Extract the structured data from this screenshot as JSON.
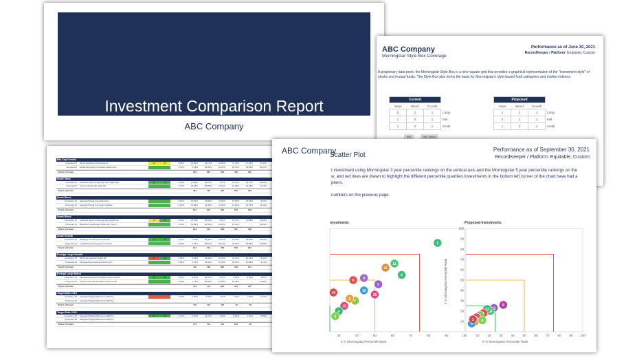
{
  "cover": {
    "title": "Investment Comparison Report",
    "company": "ABC Company"
  },
  "stylebox": {
    "company": "ABC Company",
    "subtitle": "Morningstar Style Box Coverage",
    "performance": "Performance as of June 30, 2021",
    "recordkeeper_label": "RecordKeeper / Platform",
    "recordkeeper_value": ": Empower, Custom",
    "body_line1": "A proprietary data point, the Morningstar Style Box is a nine-square grid that provides a graphical representation of the \"investment style\" of",
    "body_line2": "stocks and mutual funds. The Style Box also forms the basis for Morningstar's style-based fund categories and market indexes.",
    "current_label": "Current",
    "proposed_label": "Proposed",
    "cols": [
      "Value",
      "Blend",
      "Growth"
    ],
    "rows": [
      "Large",
      "Mid",
      "Small"
    ],
    "current_grid": [
      [
        "0",
        "2",
        "1"
      ],
      [
        "1",
        "0",
        "1"
      ],
      [
        "1",
        "2",
        "1"
      ]
    ],
    "proposed_grid": [
      [
        "1",
        "2",
        "1"
      ],
      [
        "2",
        "1",
        "1"
      ],
      [
        "1",
        "2",
        "1"
      ]
    ],
    "foot": [
      "Int'l",
      "Int'l. Bond"
    ]
  },
  "scatter": {
    "title": "ABC Company",
    "subtitle": "Scatter Plot",
    "performance": "Performance as of September 30, 2021",
    "recordkeeper": "RecordKeeper / Platform: Equitable, Custom",
    "body1": "t investment using Morningstar 3 year percentile rankings on the vertical axis and the Morningstar 5 year percentile rankings on the",
    "body2": "w, and red lines are drawn to highlight the different percentile quartiles Investments in the bottom left corner of the chart have had a",
    "body3": "peers.",
    "body4": "numbers on the previous page.",
    "left_chart_title": "nvestments",
    "right_chart_title": "Proposed Investments",
    "left_xlabel": "5 Yr Morningstar Percentile Rank",
    "right_xlabel": "5 Yr Morningstar Percentile Rank",
    "right_ylabel": "3 Yr Morningstar Percentile Rank",
    "left_ticks": [
      "30",
      "40",
      "50",
      "60",
      "70",
      "80",
      "90",
      "100"
    ],
    "right_xticks": [
      "10",
      "20",
      "30",
      "40",
      "50",
      "60",
      "70",
      "80",
      "90",
      "100"
    ],
    "right_yticks": [
      "100",
      "90",
      "80",
      "70",
      "60",
      "50",
      "40",
      "30",
      "20",
      "10"
    ]
  },
  "chart_data": [
    {
      "type": "scatter",
      "title": "",
      "xlabel": "5 Yr Morningstar Percentile Rank",
      "ylabel": "",
      "xlim": [
        25,
        100
      ],
      "ylim": [
        0,
        100
      ],
      "points": [
        {
          "x": 85,
          "y": 86,
          "label": "2",
          "color": "#3fb87f"
        },
        {
          "x": 65,
          "y": 55,
          "label": "6",
          "color": "#3fb87f"
        },
        {
          "x": 56,
          "y": 62,
          "label": "12",
          "color": "#d98c3f"
        },
        {
          "x": 61,
          "y": 66,
          "label": "11",
          "color": "#4fc07a"
        },
        {
          "x": 44,
          "y": 52,
          "label": "9",
          "color": "#a36bc9"
        },
        {
          "x": 38,
          "y": 50,
          "label": "8",
          "color": "#e05050"
        },
        {
          "x": 44,
          "y": 40,
          "label": "10",
          "color": "#3a9ad9"
        },
        {
          "x": 50,
          "y": 36,
          "label": "15",
          "color": "#d94c7a"
        },
        {
          "x": 52,
          "y": 46,
          "label": "5",
          "color": "#9b5bd4"
        },
        {
          "x": 39,
          "y": 30,
          "label": "7",
          "color": "#8cc63f"
        },
        {
          "x": 33,
          "y": 25,
          "label": "13",
          "color": "#d94c7a"
        },
        {
          "x": 36,
          "y": 32,
          "label": "1",
          "color": "#e6a23c"
        },
        {
          "x": 30,
          "y": 20,
          "label": "4",
          "color": "#3fb87f"
        },
        {
          "x": 28,
          "y": 15,
          "label": "3",
          "color": "#7fd34e"
        },
        {
          "x": 27,
          "y": 38,
          "label": "14",
          "color": "#c84e4e"
        }
      ]
    },
    {
      "type": "scatter",
      "title": "Proposed Investments",
      "xlabel": "5 Yr Morningstar Percentile Rank",
      "ylabel": "3 Yr Morningstar Percentile Rank",
      "xlim": [
        0,
        100
      ],
      "ylim": [
        0,
        100
      ],
      "points": [
        {
          "x": 32,
          "y": 26,
          "label": "9",
          "color": "#b83da8"
        },
        {
          "x": 24,
          "y": 23,
          "label": "11",
          "color": "#9b5bd4"
        },
        {
          "x": 21,
          "y": 20,
          "label": "10",
          "color": "#4fc07a"
        },
        {
          "x": 18,
          "y": 22,
          "label": "13",
          "color": "#3fb87f"
        },
        {
          "x": 15,
          "y": 18,
          "label": "5",
          "color": "#e05050"
        },
        {
          "x": 12,
          "y": 16,
          "label": "2",
          "color": "#8cc63f"
        },
        {
          "x": 9,
          "y": 14,
          "label": "8",
          "color": "#d94c7a"
        },
        {
          "x": 8,
          "y": 10,
          "label": "3",
          "color": "#e6a23c"
        },
        {
          "x": 5,
          "y": 8,
          "label": "6",
          "color": "#3a9ad9"
        },
        {
          "x": 14,
          "y": 11,
          "label": "4",
          "color": "#7fd34e"
        },
        {
          "x": 6,
          "y": 12,
          "label": "1",
          "color": "#c84e4e"
        }
      ]
    }
  ],
  "table": {
    "sections": [
      {
        "header": "Mid-Cap Growth",
        "rows": [
          {
            "lbl": "Incumbent 8",
            "name": "Janus Henderson Enterprise N",
            "r1": "42",
            "r2": "51",
            "c1": "#e8e83a",
            "c2": "#e8e83a",
            "v": [
              "0.94%",
              "10.81%",
              "33.14%",
              "16.03%",
              "17.92%",
              "17.54%",
              "17.20%",
              "07/12/12",
              "0.66%",
              "0.66%"
            ]
          },
          {
            "lbl": "Proposed 8",
            "name": "Harbor Disruptive Innovation Retirement",
            "r1": "",
            "r2": "",
            "c1": "#4caf50",
            "c2": "#4caf50",
            "v": [
              "-2.76%",
              "2.48%",
              "20.84%",
              "20.33%",
              "20.70%",
              "18.85%",
              "24.31%",
              "03/01/16",
              "0.78%",
              "0.50%"
            ]
          }
        ],
        "total": [
          "522",
          "384",
          "648",
          "466",
          "386"
        ]
      },
      {
        "header": "Small Value",
        "rows": [
          {
            "lbl": "Incumbent 9",
            "name": "Goldman Sachs Small Cap Val Insights R6",
            "r1": "40",
            "r2": "28",
            "c1": "#4caf50",
            "c2": "#4caf50",
            "v": [
              "-2.20%",
              "25.86%",
              "60.27%",
              "6.14%",
              "11.27%",
              "13.07%",
              "10.81%",
              "07/31/15",
              "0.92%",
              "0.80%"
            ]
          },
          {
            "lbl": "Proposed 9",
            "name": "Invesco Small Cap Value R6",
            "r1": "",
            "r2": "",
            "c1": "#4caf50",
            "c2": "#4caf50",
            "v": [
              "-1.79%",
              "30.25%",
              "83.83%",
              "13.51%",
              "13.89%",
              "15.23%",
              "11.19%",
              "02/07/17",
              "0.73%",
              "0.73%"
            ]
          }
        ],
        "total": [
          "425",
          "433",
          "403",
          "592",
          "299"
        ]
      },
      {
        "header": "Small Blend",
        "rows": [
          {
            "lbl": "Incumbent 10",
            "name": "Vanguard Small Cap Index Adm",
            "r1": "",
            "r2": "",
            "c1": "#4caf50",
            "c2": "#4caf50",
            "v": [
              "-2.62%",
              "13.97%",
              "44.06%",
              "11.90%",
              "13.87%",
              "15.33%",
              "8.67%",
              "11/13/00",
              "0.05%",
              "0.05%"
            ]
          },
          {
            "lbl": "Proposed 10",
            "name": "Vanguard Small Cap Index InstlPlus",
            "r1": "",
            "r2": "",
            "c1": "#4caf50",
            "c2": "#4caf50",
            "v": [
              "-2.61%",
              "13.98%",
              "44.09%",
              "12.92%",
              "14.00%",
              "15.36%",
              "12.53%",
              "12/17/10",
              "0.03%",
              "0.03%"
            ]
          }
        ],
        "total": [
          "644",
          "641",
          "603",
          "525",
          "360"
        ]
      },
      {
        "header": "Small Blend",
        "rows": [
          {
            "lbl": "Incumbent 11",
            "name": "Goldman Sachs Small Cap Eq Insights R6",
            "r1": "74",
            "r2": "51",
            "c1": "#e8e83a",
            "c2": "#4caf50",
            "v": [
              "-3.03%",
              "18.72%",
              "48.62%",
              "8.97%",
              "12.27%",
              "13.98%",
              "10.96%",
              "07/31/15",
              "0.81%",
              "0.80%"
            ]
          },
          {
            "lbl": "Proposed 11",
            "name": "BlackRock Advantage Small Cap Core K",
            "r1": "",
            "r2": "",
            "c1": "#4caf50",
            "c2": "#4caf50",
            "v": [
              "-4.15%",
              "11.88%",
              "46.35%",
              "12.16%",
              "14.61%",
              "-",
              "15.29%",
              "03/28/16",
              "0.50%",
              "0.50%"
            ]
          }
        ],
        "total": [
          "644",
          "641",
          "603",
          "525",
          "360"
        ]
      },
      {
        "header": "Small Growth",
        "rows": [
          {
            "lbl": "Incumbent 12",
            "name": "JPMorgan Small Cap Growth R6",
            "r1": "52",
            "r2": "33",
            "c1": "#4caf50",
            "c2": "#4caf50",
            "v": [
              "-5.72%",
              "4.74%",
              "30.44%",
              "18.04%",
              "20.30%",
              "18.60%",
              "16.63%",
              "11/30/10",
              "0.77%",
              "0.74%"
            ]
          },
          {
            "lbl": "Proposed 12",
            "name": "Lord Abbett Developing Growth R6",
            "r1": "",
            "r2": "",
            "c1": "#4caf50",
            "c2": "#4caf50",
            "v": [
              "-3.59%",
              "0.38%",
              "28.81%",
              "20.70%",
              "24.87%",
              "18.85%",
              "16.38%",
              "06/30/15",
              "0.59%",
              "0.59%"
            ]
          }
        ],
        "total": [
          "614",
          "611",
          "576",
          "506",
          "381"
        ]
      },
      {
        "header": "Foreign Large Growth",
        "rows": [
          {
            "lbl": "Incumbent 13",
            "name": "MFS International Growth R6",
            "r1": "61",
            "r2": "45",
            "c1": "#e0603a",
            "c2": "#4caf50",
            "v": [
              "-3.09%",
              "4.48%",
              "19.56%",
              "10.78%",
              "11.97%",
              "10.21%",
              "8.44%",
              "05/01/06",
              "0.72%",
              "0.72%"
            ]
          },
          {
            "lbl": "Proposed 13",
            "name": "Vanguard International Growth Adm",
            "r1": "",
            "r2": "",
            "c1": "#4caf50",
            "c2": "#4caf50",
            "v": [
              "-4.05%",
              "2.37%",
              "24.60%",
              "22.28%",
              "20.14%",
              "14.85%",
              "9.72%",
              "08/13/01",
              "0.33%",
              "0.33%"
            ]
          }
        ],
        "total": [
          "450",
          "438",
          "385",
          "333",
          "231"
        ]
      },
      {
        "header": "Foreign Large Blend",
        "rows": [
          {
            "lbl": "Incumbent 14",
            "name": "Vanguard Developed Markets Index Admiral",
            "r1": "40",
            "r2": "35",
            "c1": "#4caf50",
            "c2": "#4caf50",
            "v": [
              "-1.54%",
              "8.20%",
              "26.51%",
              "8.18%",
              "9.18%",
              "8.92%",
              "4.81%",
              "08/17/99",
              "0.07%",
              "0.07%"
            ]
          },
          {
            "lbl": "Proposed 14",
            "name": "Calvert International Responsible Idx R6",
            "r1": "",
            "r2": "",
            "c1": "#4caf50",
            "c2": "#4caf50",
            "v": [
              "-1.50%",
              "7.75%",
              "25.99%",
              "10.82%",
              "10.35%",
              "-",
              "14.90%",
              "02/27/15",
              "0.46%",
              "0.26%"
            ]
          }
        ],
        "total": [
          "791",
          "775",
          "691",
          "591",
          "397"
        ]
      },
      {
        "header": "Target-Date 2015",
        "rows": [
          {
            "lbl": "Incumbent 15",
            "name": "Vanguard Target Retirement 2015 Inv",
            "r1": "",
            "r2": "",
            "c1": "#e0603a",
            "c2": "#e0603a",
            "v": [
              "-0.18%",
              "3.56%",
              "9.49%",
              "7.74%",
              "7.13%",
              "7.87%",
              "6.41%",
              "10/27/03",
              "0.12%",
              "0.12%"
            ]
          },
          {
            "lbl": "Proposed 15",
            "name": "Vanguard Target Retirement 2015 Inv",
            "r1": "",
            "r2": "",
            "c1": "",
            "c2": "",
            "v": [
              "-",
              "-",
              "-",
              "-",
              "-",
              "-",
              "-",
              "-",
              "0.00%",
              "0.12%"
            ]
          }
        ],
        "total": [
          "116",
          "116",
          "110",
          "79",
          "48"
        ]
      },
      {
        "header": "Target-Date 2020",
        "rows": [
          {
            "lbl": "Incumbent 16",
            "name": "Vanguard Target Retirement 2020 Inv",
            "r1": "61",
            "r2": "53",
            "c1": "#4caf50",
            "c2": "#4caf50",
            "v": [
              "-0.41%",
              "5.10%",
              "13.37%",
              "9.00%",
              "8.60%",
              "9.11%",
              "6.85%",
              "06/07/06",
              "0.13%",
              "0.13%"
            ]
          },
          {
            "lbl": "Proposed 16",
            "name": "Vanguard Target Retirement 2020 Inv",
            "r1": "",
            "r2": "",
            "c1": "",
            "c2": "",
            "v": [
              "-",
              "-",
              "-",
              "-",
              "-",
              "-",
              "-",
              "-",
              "0.00%",
              "0.13%"
            ]
          }
        ],
        "total": [
          "174",
          "174",
          "161",
          "122",
          "66"
        ]
      }
    ],
    "total_label": "Total # of Funds"
  }
}
